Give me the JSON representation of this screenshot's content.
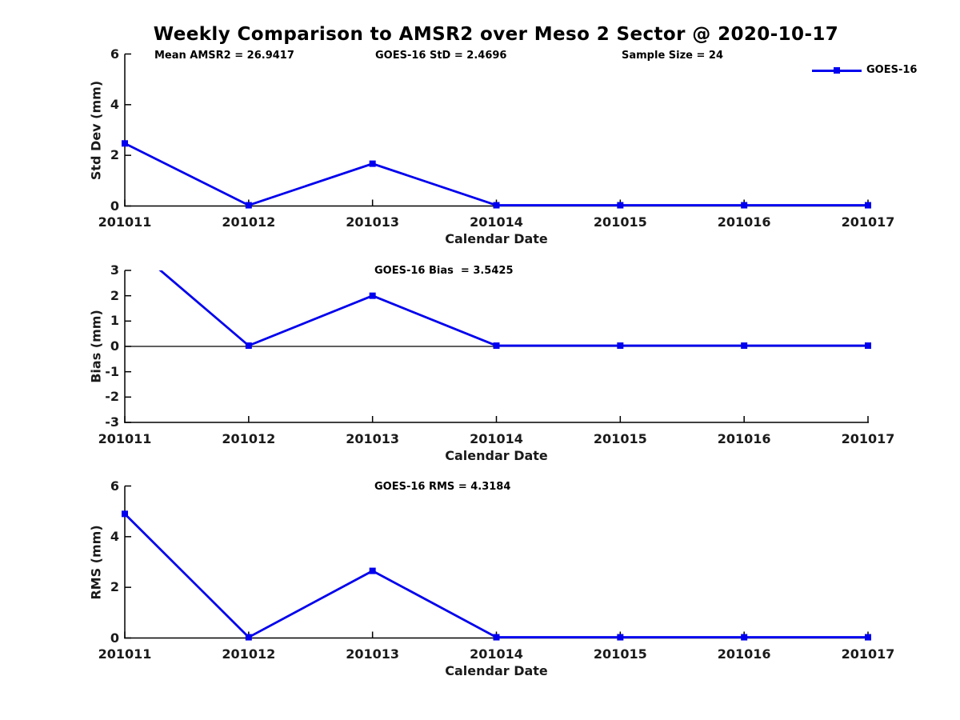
{
  "figure": {
    "title": "Weekly Comparison to AMSR2 over Meso 2 Sector @ 2020-10-17",
    "legend": {
      "label": "GOES-16"
    },
    "colors": {
      "line": "#0000EE",
      "axis": "#000000",
      "text": "#1A1A1A"
    }
  },
  "chart_data": [
    {
      "type": "line",
      "categories": [
        "201011",
        "201012",
        "201013",
        "201014",
        "201015",
        "201016",
        "201017"
      ],
      "series": [
        {
          "name": "GOES-16",
          "values": [
            2.47,
            0.03,
            1.67,
            0.03,
            0.03,
            0.03,
            0.03
          ]
        }
      ],
      "xlabel": "Calendar Date",
      "ylabel": "Std Dev (mm)",
      "ylim": [
        0,
        6
      ],
      "yticks": [
        0,
        2,
        4,
        6
      ],
      "zero_line": false,
      "grid": false,
      "legend_position": "top-right",
      "annotations": [
        "Mean AMSR2 = 26.9417",
        "GOES-16 StD = 2.4696",
        "Sample Size = 24"
      ]
    },
    {
      "type": "line",
      "categories": [
        "201011",
        "201012",
        "201013",
        "201014",
        "201015",
        "201016",
        "201017"
      ],
      "series": [
        {
          "name": "GOES-16",
          "values": [
            4.2,
            0.03,
            2.0,
            0.03,
            0.03,
            0.03,
            0.03
          ]
        }
      ],
      "xlabel": "Calendar Date",
      "ylabel": "Bias (mm)",
      "ylim": [
        -3,
        3
      ],
      "yticks": [
        -3,
        -2,
        -1,
        0,
        1,
        2,
        3
      ],
      "zero_line": true,
      "grid": false,
      "annotations": [
        "GOES-16 Bias  = 3.5425"
      ]
    },
    {
      "type": "line",
      "categories": [
        "201011",
        "201012",
        "201013",
        "201014",
        "201015",
        "201016",
        "201017"
      ],
      "series": [
        {
          "name": "GOES-16",
          "values": [
            4.9,
            0.03,
            2.65,
            0.03,
            0.03,
            0.03,
            0.03
          ]
        }
      ],
      "xlabel": "Calendar Date",
      "ylabel": "RMS (mm)",
      "ylim": [
        0,
        6
      ],
      "yticks": [
        0,
        2,
        4,
        6
      ],
      "zero_line": false,
      "grid": false,
      "annotations": [
        "GOES-16 RMS = 4.3184"
      ]
    }
  ]
}
